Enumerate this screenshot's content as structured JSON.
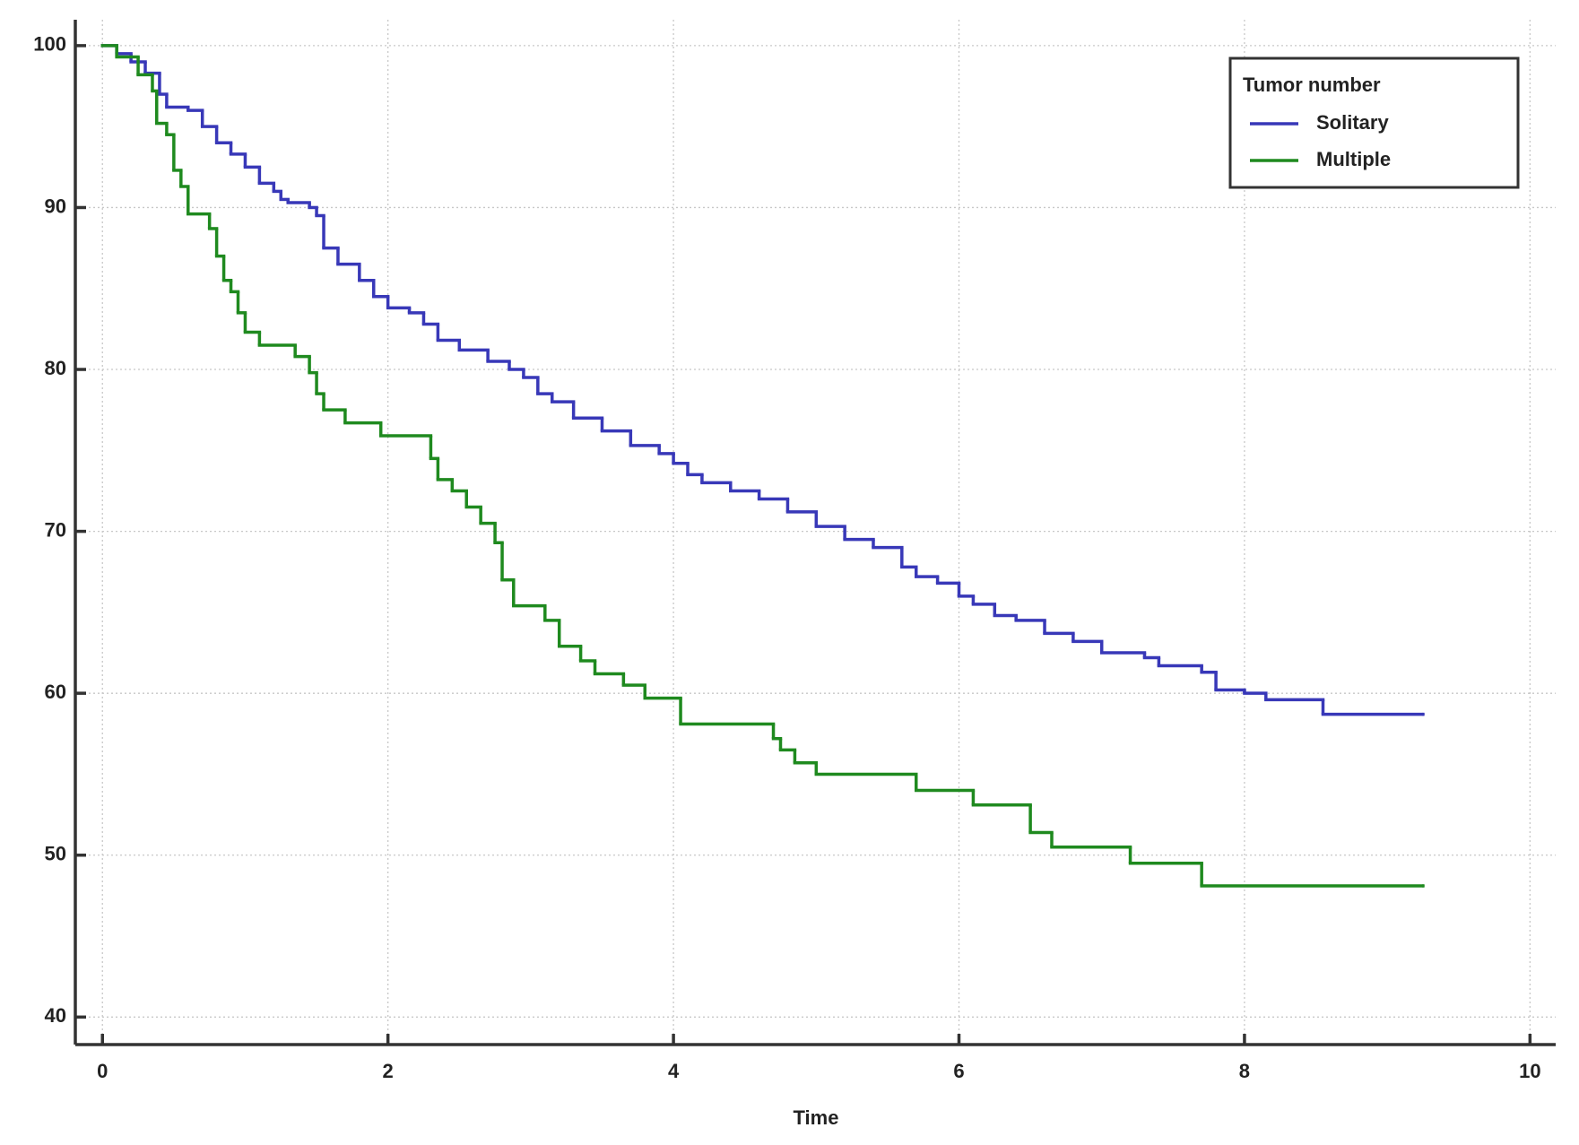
{
  "chart_data": {
    "type": "step",
    "x_label": "Time",
    "legend_title": "Tumor number",
    "legend": "upper right",
    "grid": true,
    "xlim": [
      -0.19,
      10.18
    ],
    "ylim": [
      38.3,
      101.6
    ],
    "xticks": [
      0,
      2,
      4,
      6,
      8,
      10
    ],
    "yticks": [
      40,
      50,
      60,
      70,
      80,
      90,
      100
    ],
    "series": [
      {
        "name": "Solitary",
        "color": "#3838b8",
        "x": [
          0,
          0.1,
          0.2,
          0.3,
          0.4,
          0.45,
          0.6,
          0.7,
          0.8,
          0.9,
          1.0,
          1.1,
          1.2,
          1.25,
          1.3,
          1.45,
          1.5,
          1.55,
          1.65,
          1.8,
          1.9,
          2.0,
          2.15,
          2.25,
          2.35,
          2.5,
          2.7,
          2.85,
          2.95,
          3.05,
          3.15,
          3.3,
          3.5,
          3.7,
          3.9,
          4.0,
          4.1,
          4.2,
          4.4,
          4.6,
          4.8,
          5.0,
          5.2,
          5.4,
          5.6,
          5.7,
          5.85,
          6.0,
          6.1,
          6.25,
          6.4,
          6.6,
          6.8,
          7.0,
          7.3,
          7.4,
          7.7,
          7.8,
          8.0,
          8.15,
          8.55,
          9.25
        ],
        "values": [
          100,
          99.5,
          99,
          98.3,
          97,
          96.2,
          96,
          95,
          94,
          93.3,
          92.5,
          91.5,
          91,
          90.5,
          90.3,
          90,
          89.5,
          87.5,
          86.5,
          85.5,
          84.5,
          83.8,
          83.5,
          82.8,
          81.8,
          81.2,
          80.5,
          80,
          79.5,
          78.5,
          78,
          77,
          76.2,
          75.3,
          74.8,
          74.2,
          73.5,
          73,
          72.5,
          72,
          71.2,
          70.3,
          69.5,
          69,
          67.8,
          67.2,
          66.8,
          66,
          65.5,
          64.8,
          64.5,
          63.7,
          63.2,
          62.5,
          62.2,
          61.7,
          61.3,
          60.2,
          60,
          59.6,
          58.7,
          58.7
        ]
      },
      {
        "name": "Multiple",
        "color": "#1f8a1f",
        "x": [
          0,
          0.1,
          0.25,
          0.35,
          0.38,
          0.45,
          0.5,
          0.55,
          0.6,
          0.75,
          0.8,
          0.85,
          0.9,
          0.95,
          1.0,
          1.1,
          1.35,
          1.45,
          1.5,
          1.55,
          1.7,
          1.95,
          2.3,
          2.35,
          2.45,
          2.55,
          2.65,
          2.75,
          2.8,
          2.88,
          3.1,
          3.2,
          3.35,
          3.45,
          3.65,
          3.8,
          4.05,
          4.7,
          4.75,
          4.85,
          5.0,
          5.7,
          6.1,
          6.5,
          6.65,
          7.2,
          7.7,
          9.25
        ],
        "values": [
          100,
          99.3,
          98.2,
          97.2,
          95.2,
          94.5,
          92.3,
          91.3,
          89.6,
          88.7,
          87,
          85.5,
          84.8,
          83.5,
          82.3,
          81.5,
          80.8,
          79.8,
          78.5,
          77.5,
          76.7,
          75.9,
          74.5,
          73.2,
          72.5,
          71.5,
          70.5,
          69.3,
          67,
          65.4,
          64.5,
          62.9,
          62,
          61.2,
          60.5,
          59.7,
          58.1,
          57.2,
          56.5,
          55.7,
          55,
          54,
          53.1,
          51.4,
          50.5,
          49.5,
          48.1,
          48.1
        ]
      }
    ]
  }
}
